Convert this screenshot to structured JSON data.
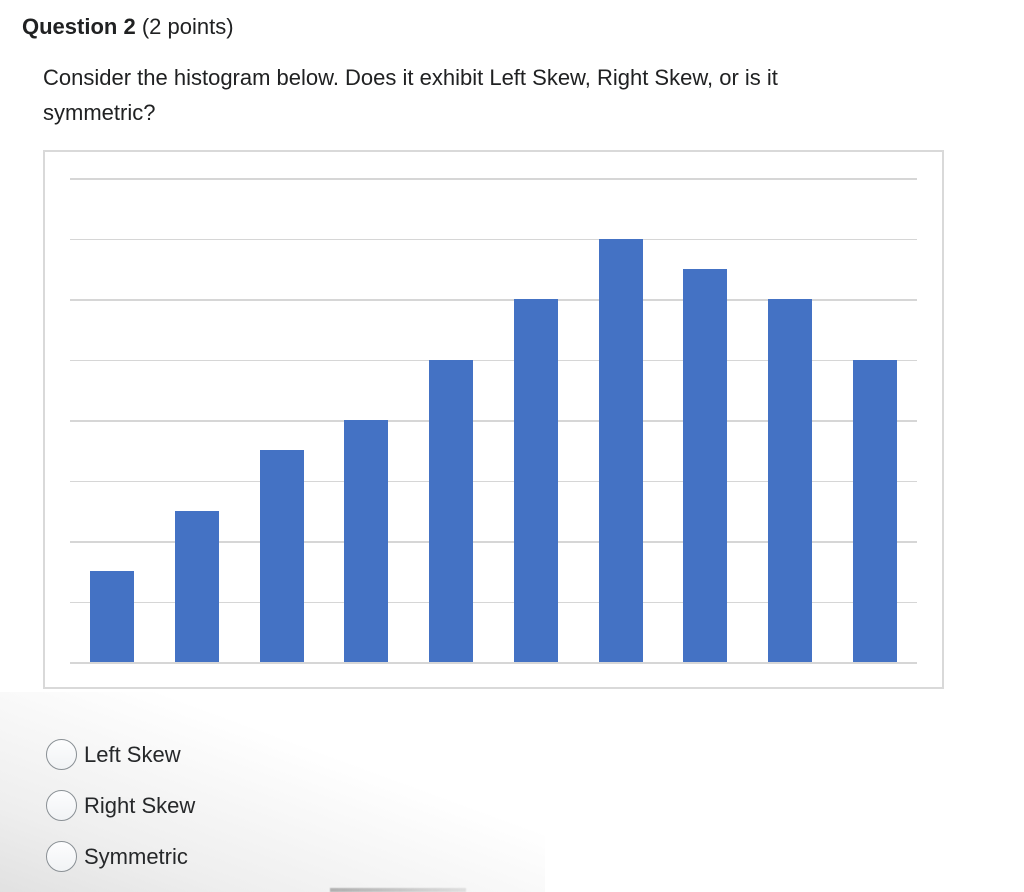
{
  "header": {
    "title": "Question 2",
    "points": "(2 points)"
  },
  "question": {
    "text": "Consider the histogram below. Does it exhibit Left Skew, Right Skew, or is it symmetric?"
  },
  "options": [
    {
      "label": "Left Skew",
      "selected": false
    },
    {
      "label": "Right Skew",
      "selected": false
    },
    {
      "label": "Symmetric",
      "selected": false
    }
  ],
  "chart_data": {
    "type": "bar",
    "subtype": "histogram",
    "title": "",
    "xlabel": "",
    "ylabel": "",
    "categories": [
      "",
      "",
      "",
      "",
      "",
      "",
      "",
      "",
      "",
      ""
    ],
    "values": [
      1.5,
      2.5,
      3.5,
      4,
      5,
      6,
      7,
      6.5,
      6,
      5
    ],
    "values_note": "bar heights measured in gridline units; chart shows no numeric tick labels or axis labels",
    "ylim": [
      0,
      8.6
    ],
    "gridline_step": 1,
    "gridline_count": 9,
    "grid": true,
    "legend": false,
    "tick_labels_visible": false,
    "bar_color": "#4472C4",
    "gridline_color": "#d6d6d6",
    "panel_border_color": "#d9d9d9"
  },
  "colors": {
    "text": "#202122",
    "radio_border": "#8a9095",
    "background": "#ffffff"
  }
}
